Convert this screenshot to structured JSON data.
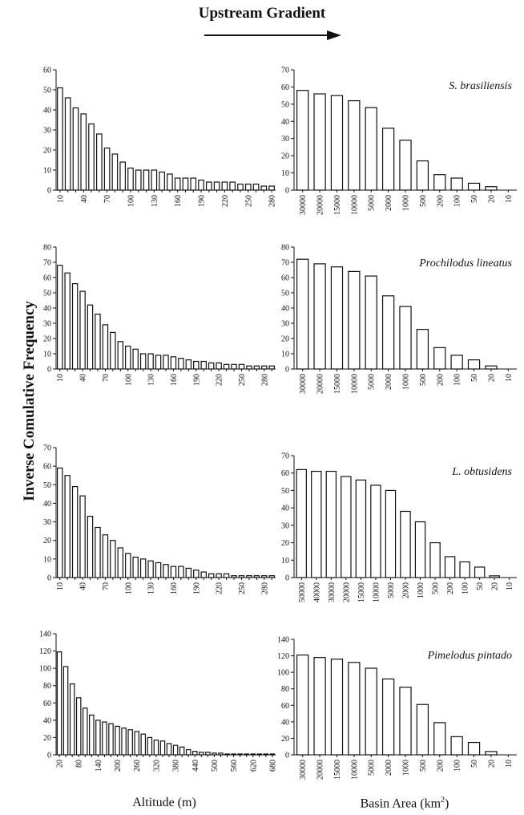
{
  "header": {
    "label": "Upstream Gradient"
  },
  "y_axis_title": "Inverse Comulative Frequency",
  "x_axis_titles": {
    "left": "Altitude (m)",
    "right_prefix": "Basin Area (km",
    "right_sup": "2",
    "right_suffix": ")"
  },
  "colors": {
    "ink": "#111111",
    "bar_fill": "#ffffff"
  },
  "chart_data": [
    {
      "type": "bar",
      "panel": "altitude",
      "species": "",
      "categories": [
        "10",
        "20",
        "30",
        "40",
        "50",
        "60",
        "70",
        "80",
        "90",
        "100",
        "110",
        "120",
        "130",
        "140",
        "150",
        "160",
        "170",
        "180",
        "190",
        "200",
        "210",
        "220",
        "230",
        "240",
        "250",
        "260",
        "270",
        "280"
      ],
      "tick_labels": [
        "10",
        "40",
        "70",
        "100",
        "130",
        "160",
        "190",
        "220",
        "250",
        "280"
      ],
      "values": [
        51,
        46,
        41,
        38,
        33,
        28,
        21,
        18,
        14,
        11,
        10,
        10,
        10,
        9,
        8,
        6,
        6,
        6,
        5,
        4,
        4,
        4,
        4,
        3,
        3,
        3,
        2,
        2
      ],
      "ylim": [
        0,
        60
      ],
      "yticks": [
        0,
        10,
        20,
        30,
        40,
        50,
        60
      ]
    },
    {
      "type": "bar",
      "panel": "basin",
      "species": "S. brasiliensis",
      "categories": [
        "30000",
        "20000",
        "15000",
        "10000",
        "5000",
        "2000",
        "1000",
        "500",
        "200",
        "100",
        "50",
        "20",
        "10"
      ],
      "tick_labels": [
        "30000",
        "20000",
        "15000",
        "10000",
        "5000",
        "2000",
        "1000",
        "500",
        "200",
        "100",
        "50",
        "20",
        "10"
      ],
      "values": [
        58,
        56,
        55,
        52,
        48,
        36,
        29,
        17,
        9,
        7,
        4,
        2,
        0
      ],
      "ylim": [
        0,
        70
      ],
      "yticks": [
        0,
        10,
        20,
        30,
        40,
        50,
        60,
        70
      ]
    },
    {
      "type": "bar",
      "panel": "altitude",
      "species": "",
      "categories": [
        "10",
        "20",
        "30",
        "40",
        "50",
        "60",
        "70",
        "80",
        "90",
        "100",
        "110",
        "120",
        "130",
        "140",
        "150",
        "160",
        "170",
        "180",
        "190",
        "200",
        "210",
        "220",
        "230",
        "240",
        "250",
        "260",
        "270",
        "280",
        "290"
      ],
      "tick_labels": [
        "10",
        "40",
        "70",
        "100",
        "130",
        "160",
        "190",
        "220",
        "250",
        "280"
      ],
      "values": [
        68,
        63,
        56,
        51,
        42,
        36,
        29,
        24,
        18,
        15,
        13,
        10,
        10,
        9,
        9,
        8,
        7,
        6,
        5,
        5,
        4,
        4,
        3,
        3,
        3,
        2,
        2,
        2,
        2
      ],
      "ylim": [
        0,
        80
      ],
      "yticks": [
        0,
        10,
        20,
        30,
        40,
        50,
        60,
        70,
        80
      ]
    },
    {
      "type": "bar",
      "panel": "basin",
      "species": "Prochilodus lineatus",
      "categories": [
        "30000",
        "20000",
        "15000",
        "10000",
        "5000",
        "2000",
        "1000",
        "500",
        "200",
        "100",
        "50",
        "20",
        "10"
      ],
      "tick_labels": [
        "30000",
        "20000",
        "15000",
        "10000",
        "5000",
        "2000",
        "1000",
        "500",
        "200",
        "100",
        "50",
        "20",
        "10"
      ],
      "values": [
        72,
        69,
        67,
        64,
        61,
        48,
        41,
        26,
        14,
        9,
        6,
        2,
        0
      ],
      "ylim": [
        0,
        80
      ],
      "yticks": [
        0,
        10,
        20,
        30,
        40,
        50,
        60,
        70,
        80
      ]
    },
    {
      "type": "bar",
      "panel": "altitude",
      "species": "",
      "categories": [
        "10",
        "20",
        "30",
        "40",
        "50",
        "60",
        "70",
        "80",
        "90",
        "100",
        "110",
        "120",
        "130",
        "140",
        "150",
        "160",
        "170",
        "180",
        "190",
        "200",
        "210",
        "220",
        "230",
        "240",
        "250",
        "260",
        "270",
        "280",
        "290"
      ],
      "tick_labels": [
        "10",
        "40",
        "70",
        "100",
        "130",
        "160",
        "190",
        "220",
        "250",
        "280"
      ],
      "values": [
        59,
        55,
        49,
        44,
        33,
        27,
        23,
        20,
        16,
        13,
        11,
        10,
        9,
        8,
        7,
        6,
        6,
        5,
        4,
        3,
        2,
        2,
        2,
        1,
        1,
        1,
        1,
        1,
        1
      ],
      "ylim": [
        0,
        70
      ],
      "yticks": [
        0,
        10,
        20,
        30,
        40,
        50,
        60,
        70
      ]
    },
    {
      "type": "bar",
      "panel": "basin",
      "species": "L. obtusidens",
      "categories": [
        "50000",
        "40000",
        "30000",
        "20000",
        "15000",
        "10000",
        "5000",
        "2000",
        "1000",
        "500",
        "200",
        "100",
        "50",
        "20",
        "10"
      ],
      "tick_labels": [
        "50000",
        "40000",
        "30000",
        "20000",
        "15000",
        "10000",
        "5000",
        "2000",
        "1000",
        "500",
        "200",
        "100",
        "50",
        "20",
        "10"
      ],
      "values": [
        62,
        61,
        61,
        58,
        56,
        53,
        50,
        38,
        32,
        20,
        12,
        9,
        6,
        1,
        0
      ],
      "ylim": [
        0,
        70
      ],
      "yticks": [
        0,
        10,
        20,
        30,
        40,
        50,
        60,
        70
      ]
    },
    {
      "type": "bar",
      "panel": "altitude",
      "species": "",
      "categories": [
        "20",
        "40",
        "60",
        "80",
        "100",
        "120",
        "140",
        "160",
        "180",
        "200",
        "220",
        "240",
        "260",
        "280",
        "300",
        "320",
        "340",
        "360",
        "380",
        "400",
        "420",
        "440",
        "460",
        "480",
        "500",
        "520",
        "540",
        "560",
        "580",
        "600",
        "620",
        "640",
        "660",
        "680"
      ],
      "tick_labels": [
        "20",
        "80",
        "140",
        "200",
        "260",
        "320",
        "380",
        "440",
        "500",
        "560",
        "620",
        "680"
      ],
      "values": [
        119,
        102,
        82,
        66,
        54,
        46,
        40,
        38,
        36,
        33,
        31,
        29,
        27,
        24,
        20,
        17,
        16,
        13,
        11,
        9,
        6,
        4,
        3,
        3,
        2,
        2,
        1,
        1,
        1,
        1,
        1,
        1,
        1,
        1
      ],
      "ylim": [
        0,
        140
      ],
      "yticks": [
        0,
        20,
        40,
        60,
        80,
        100,
        120,
        140
      ]
    },
    {
      "type": "bar",
      "panel": "basin",
      "species": "Pimelodus pintado",
      "categories": [
        "30000",
        "20000",
        "15000",
        "10000",
        "5000",
        "2000",
        "1000",
        "500",
        "200",
        "100",
        "50",
        "20",
        "10"
      ],
      "tick_labels": [
        "30000",
        "20000",
        "15000",
        "10000",
        "5000",
        "2000",
        "1000",
        "500",
        "200",
        "100",
        "50",
        "20",
        "10"
      ],
      "values": [
        121,
        118,
        116,
        112,
        105,
        92,
        82,
        61,
        39,
        22,
        15,
        4,
        0
      ],
      "ylim": [
        0,
        140
      ],
      "yticks": [
        0,
        20,
        40,
        60,
        80,
        100,
        120,
        140
      ]
    }
  ]
}
